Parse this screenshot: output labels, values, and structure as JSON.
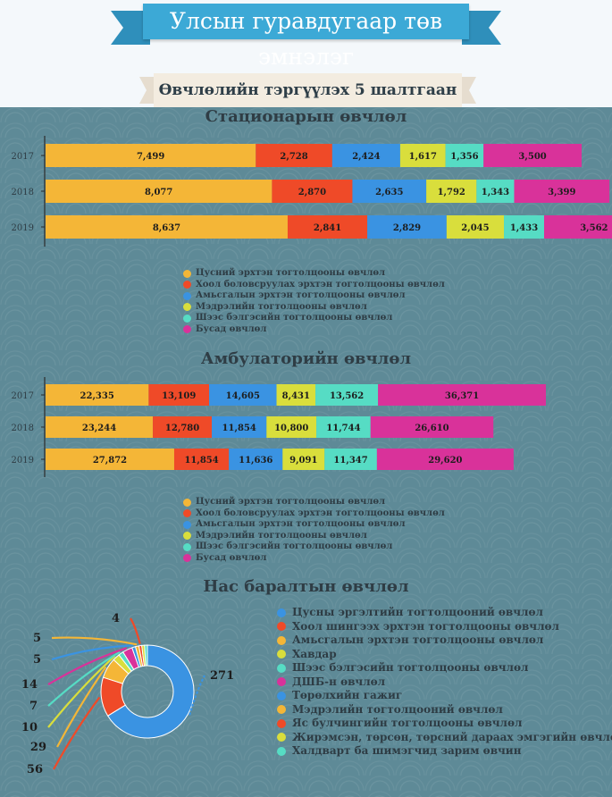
{
  "header": {
    "title": "Улсын гуравдугаар төв эмнэлэг",
    "subtitle": "Өвчлөлийн тэргүүлэх 5 шалтгаан"
  },
  "colors": [
    "#f4b637",
    "#ef4a28",
    "#3a93e2",
    "#d9de3c",
    "#56dcc4",
    "#d9329a"
  ],
  "chart_data": [
    {
      "type": "bar",
      "orientation": "horizontal",
      "stacked": true,
      "title": "Стационарын өвчлөл",
      "categories": [
        "2017",
        "2018",
        "2019"
      ],
      "series": [
        {
          "name": "Цусний эрхтэн тогтолцооны өвчлөл",
          "color": "#f4b637",
          "values": [
            7499,
            8077,
            8637
          ],
          "labels": [
            "7,499",
            "8,077",
            "8,637"
          ]
        },
        {
          "name": "Хоол боловсруулах эрхтэн тогтолцооны өвчлөл",
          "color": "#ef4a28",
          "values": [
            2728,
            2870,
            2841
          ],
          "labels": [
            "2,728",
            "2,870",
            "2,841"
          ]
        },
        {
          "name": "Амьсгалын эрхтэн тогтолцооны өвчлөл",
          "color": "#3a93e2",
          "values": [
            2424,
            2635,
            2829
          ],
          "labels": [
            "2,424",
            "2,635",
            "2,829"
          ]
        },
        {
          "name": "Мэдрэлийн тогтолцооны өвчлөл",
          "color": "#d9de3c",
          "values": [
            1617,
            1792,
            2045
          ],
          "labels": [
            "1,617",
            "1,792",
            "2,045"
          ]
        },
        {
          "name": "Шээс бэлгэсийн тогтолцооны өвчлөл",
          "color": "#56dcc4",
          "values": [
            1356,
            1343,
            1433
          ],
          "labels": [
            "1,356",
            "1,343",
            "1,433"
          ]
        },
        {
          "name": "Бусад өвчлөл",
          "color": "#d9329a",
          "values": [
            3500,
            3399,
            3562
          ],
          "labels": [
            "3,500",
            "3,399",
            "3,562"
          ]
        }
      ],
      "legend_position": "bottom"
    },
    {
      "type": "bar",
      "orientation": "horizontal",
      "stacked": true,
      "title": "Амбулаторийн өвчлөл",
      "categories": [
        "2017",
        "2018",
        "2019"
      ],
      "series": [
        {
          "name": "Цусний эрхтэн тогтолцооны өвчлөл",
          "color": "#f4b637",
          "values": [
            22335,
            23244,
            27872
          ],
          "labels": [
            "22,335",
            "23,244",
            "27,872"
          ]
        },
        {
          "name": "Хоол боловсруулах эрхтэн тогтолцооны өвчлөл",
          "color": "#ef4a28",
          "values": [
            13109,
            12780,
            11854
          ],
          "labels": [
            "13,109",
            "12,780",
            "11,854"
          ]
        },
        {
          "name": "Амьсгалын эрхтэн тогтолцооны өвчлөл",
          "color": "#3a93e2",
          "values": [
            14605,
            11854,
            11636
          ],
          "labels": [
            "14,605",
            "11,854",
            "11,636"
          ]
        },
        {
          "name": "Мэдрэлийн тогтолцооны өвчлөл",
          "color": "#d9de3c",
          "values": [
            8431,
            10800,
            9091
          ],
          "labels": [
            "8,431",
            "10,800",
            "9,091"
          ]
        },
        {
          "name": "Шээс бэлгэсийн тогтолцооны өвчлөл",
          "color": "#56dcc4",
          "values": [
            13562,
            11744,
            11347
          ],
          "labels": [
            "13,562",
            "11,744",
            "11,347"
          ]
        },
        {
          "name": "Бусад өвчлөл",
          "color": "#d9329a",
          "values": [
            36371,
            26610,
            29620
          ],
          "labels": [
            "36,371",
            "26,610",
            "29,620"
          ]
        }
      ],
      "legend_position": "bottom"
    },
    {
      "type": "pie",
      "donut": true,
      "title": "Нас баралтын өвчлөл",
      "slices": [
        {
          "name": "Цусны эргэлтийн тогтолцооний өвчлөл",
          "value": 271,
          "color": "#3a93e2"
        },
        {
          "name": "Хоол шингээх эрхтэн тогтолцооны өвчлөл",
          "value": 56,
          "color": "#ef4a28"
        },
        {
          "name": "Амьсгалын эрхтэн тогтолцооны өвчлөл",
          "value": 29,
          "color": "#f4b637"
        },
        {
          "name": "Хавдар",
          "value": 10,
          "color": "#d9de3c"
        },
        {
          "name": "Шээс бэлгэсийн тогтолцооны өвчлөл",
          "value": 7,
          "color": "#56dcc4"
        },
        {
          "name": "ДШБ-н өвчлөл",
          "value": 14,
          "color": "#d9329a"
        },
        {
          "name": "Төрөлхийн гажиг",
          "value": 5,
          "color": "#3a93e2"
        },
        {
          "name": "Мэдрэлийн тогтолцооний өвчлөл",
          "value": 5,
          "color": "#f4b637"
        },
        {
          "name": "Яс булчингийн тогтолцооны өвчлөл",
          "value": 4,
          "color": "#ef4a28"
        },
        {
          "name": "Жирэмсэн, төрсөн, төрсний дараах эмгэгийн өвчлөл",
          "value": 4,
          "color": "#d9de3c"
        },
        {
          "name": "Халдварт ба шимэгчид зарим өвчин",
          "value": 4,
          "color": "#56dcc4"
        }
      ],
      "labels_shown": [
        "271",
        "56",
        "29",
        "10",
        "7",
        "14",
        "5",
        "5",
        "4"
      ],
      "legend_position": "right"
    }
  ]
}
